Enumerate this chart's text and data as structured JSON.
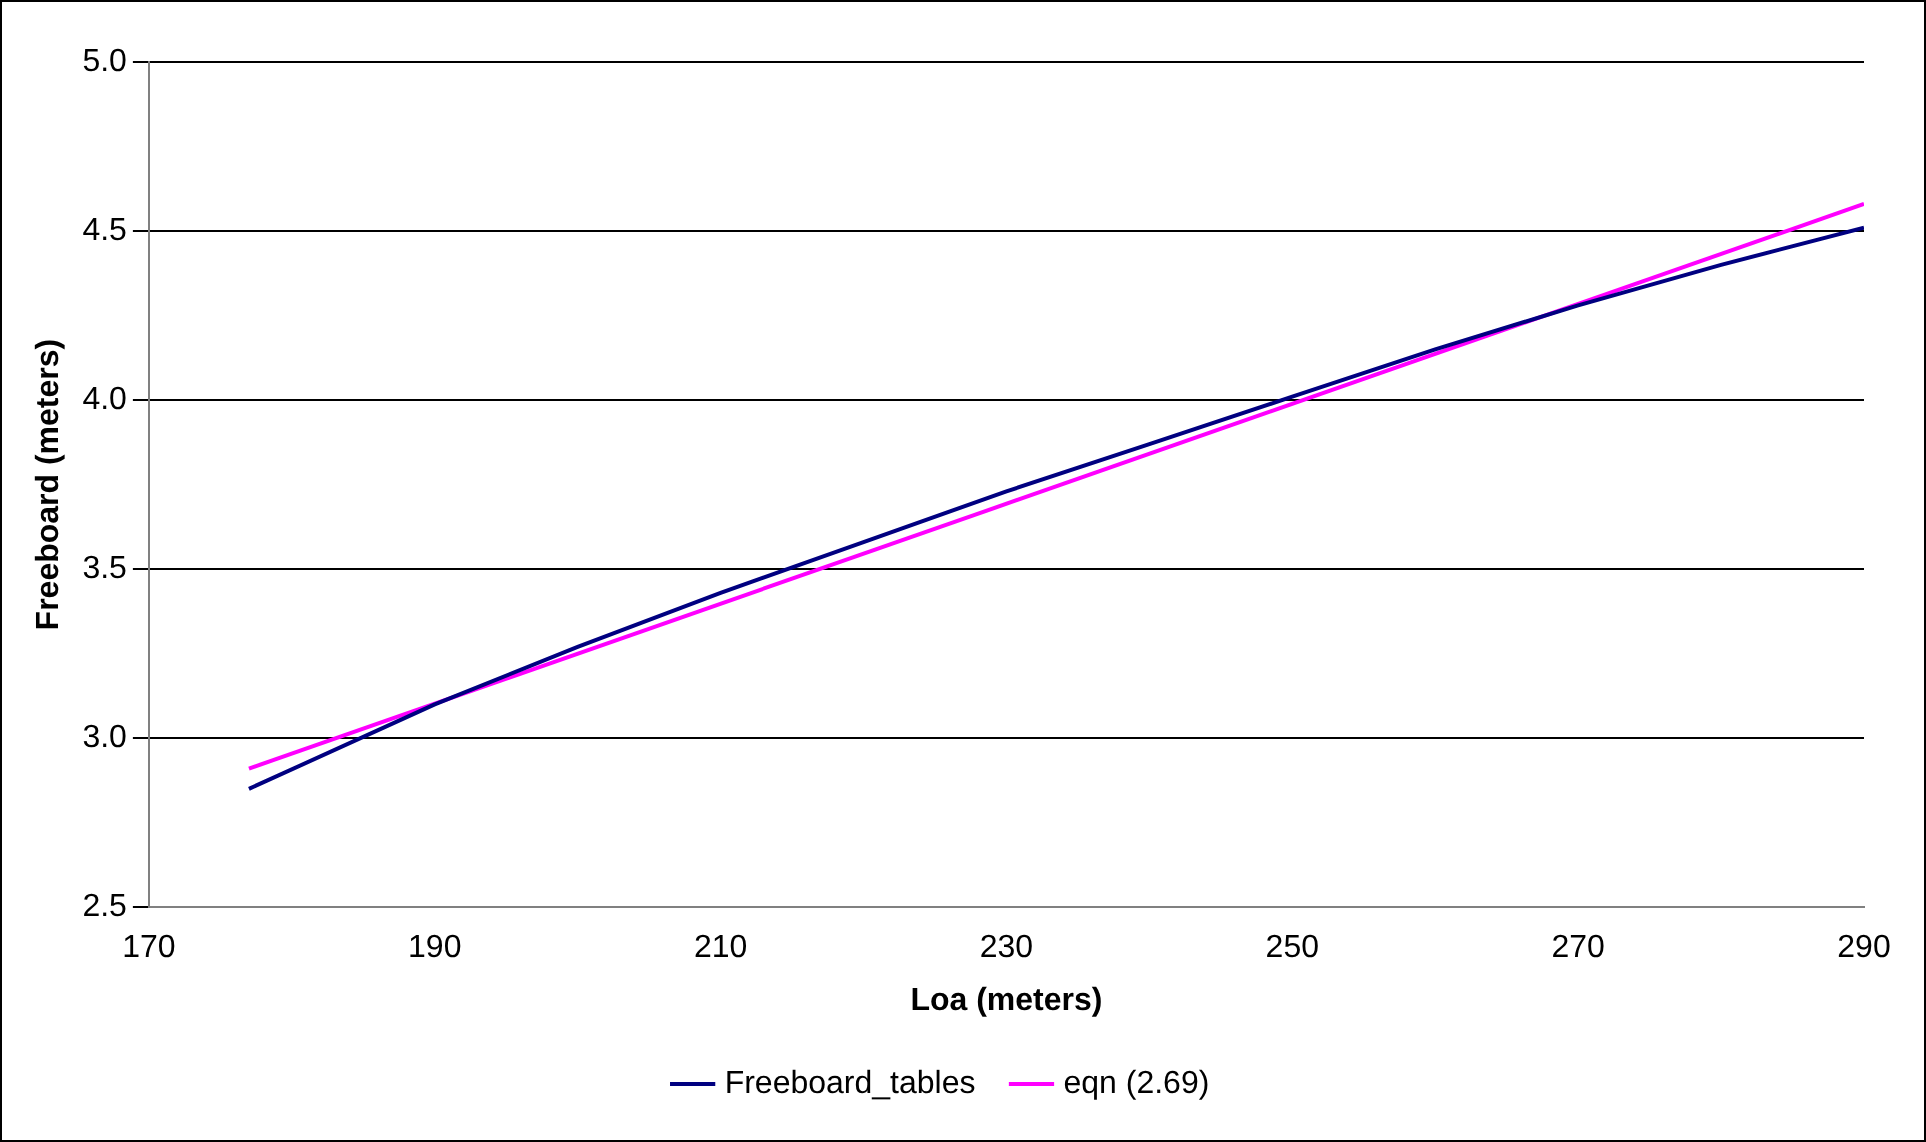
{
  "chart_data": {
    "type": "line",
    "xlabel": "Loa (meters)",
    "ylabel": "Freeboard (meters)",
    "xlim": [
      170,
      290
    ],
    "xticks": [
      170,
      190,
      210,
      230,
      250,
      270,
      290
    ],
    "ylim": [
      2.5,
      5.0
    ],
    "yticks": [
      {
        "value": 2.5,
        "label": "2.5"
      },
      {
        "value": 3.0,
        "label": "3.0"
      },
      {
        "value": 3.5,
        "label": "3.5"
      },
      {
        "value": 4.0,
        "label": "4.0"
      },
      {
        "value": 4.5,
        "label": "4.5"
      },
      {
        "value": 5.0,
        "label": "5.0"
      }
    ],
    "grid": "y",
    "legend": "bottom",
    "marker": "none",
    "line_style": "solid",
    "series": [
      {
        "name": "Freeboard_tables",
        "color": "#000080",
        "x": [
          177,
          190,
          200,
          210,
          220,
          230,
          240,
          250,
          260,
          270,
          280,
          290
        ],
        "values": [
          2.85,
          3.1,
          3.27,
          3.43,
          3.58,
          3.73,
          3.87,
          4.01,
          4.15,
          4.28,
          4.4,
          4.51
        ]
      },
      {
        "name": "eqn (2.69)",
        "color": "#ff00ff",
        "x": [
          177,
          290
        ],
        "values": [
          2.91,
          4.58
        ]
      }
    ]
  }
}
